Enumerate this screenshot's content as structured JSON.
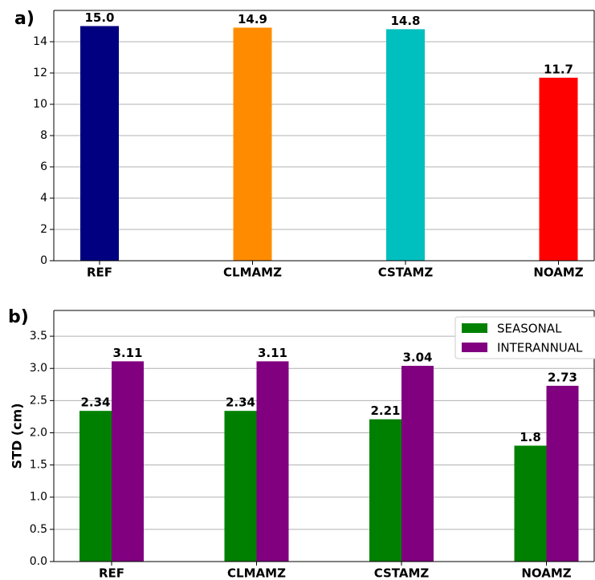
{
  "chart_data": [
    {
      "type": "bar",
      "panel_label": "a)",
      "categories": [
        "REF",
        "CLMAMZ",
        "CSTAMZ",
        "NOAMZ"
      ],
      "values": [
        15.0,
        14.9,
        14.8,
        11.7
      ],
      "value_labels": [
        "15.0",
        "14.9",
        "14.8",
        "11.7"
      ],
      "colors": [
        "#000080",
        "#ff8c00",
        "#00bfbf",
        "#ff0000"
      ],
      "ylim": [
        0,
        16
      ],
      "yticks": [
        0,
        2,
        4,
        6,
        8,
        10,
        12,
        14
      ],
      "grid": true
    },
    {
      "type": "bar",
      "panel_label": "b)",
      "ylabel": "STD (cm)",
      "categories": [
        "REF",
        "CLMAMZ",
        "CSTAMZ",
        "NOAMZ"
      ],
      "series": [
        {
          "name": "SEASONAL",
          "color": "#008000",
          "values": [
            2.34,
            2.34,
            2.21,
            1.8
          ]
        },
        {
          "name": "INTERANNUAL",
          "color": "#800080",
          "values": [
            3.11,
            3.11,
            3.04,
            2.73
          ]
        }
      ],
      "ylim": [
        0,
        3.9
      ],
      "yticks": [
        {
          "value": 0,
          "label": "0.0"
        },
        0.5,
        {
          "value": 1,
          "label": "1.0"
        },
        1.5,
        {
          "value": 2,
          "label": "2.0"
        },
        2.5,
        {
          "value": 3,
          "label": "3.0"
        },
        3.5
      ],
      "grid": true,
      "legend": "upper right"
    }
  ]
}
